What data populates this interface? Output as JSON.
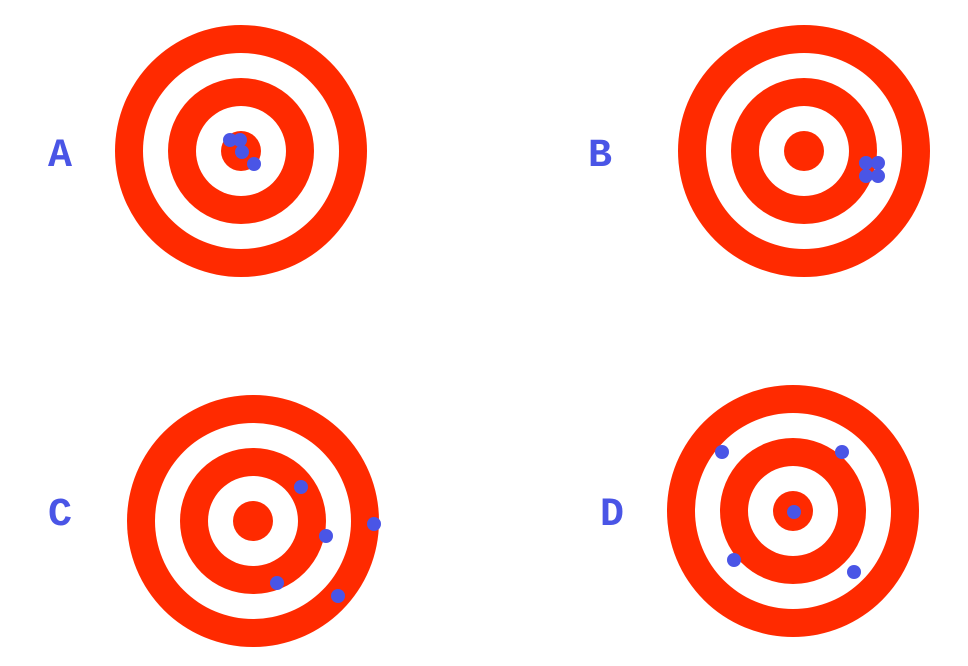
{
  "colors": {
    "ring": "#FF2A00",
    "background": "#FFFFFF",
    "hit": "#4A55E6",
    "label": "#4A55E6"
  },
  "targets": [
    {
      "id": "a",
      "label": "A",
      "hits": 4
    },
    {
      "id": "b",
      "label": "B",
      "hits": 4
    },
    {
      "id": "c",
      "label": "C",
      "hits": 5
    },
    {
      "id": "d",
      "label": "D",
      "hits": 5
    }
  ]
}
